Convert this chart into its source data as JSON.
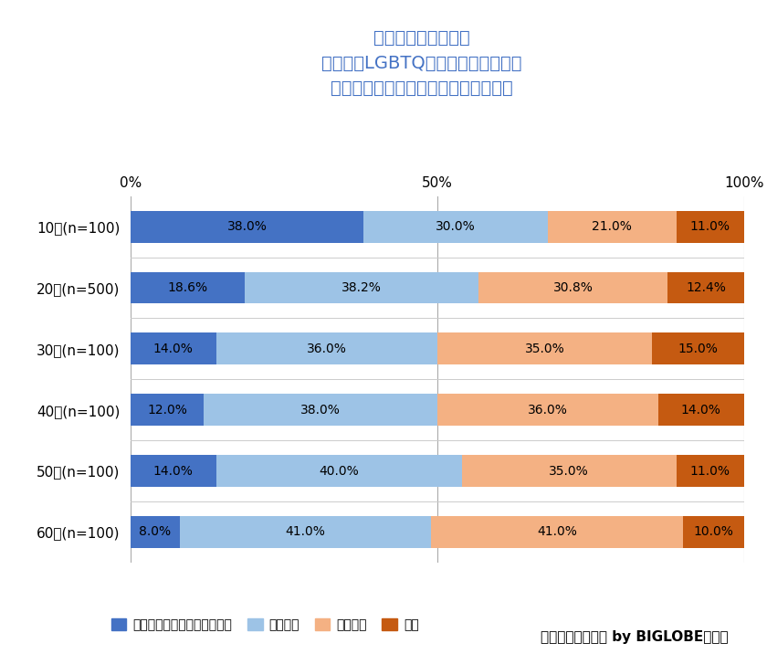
{
  "title_lines": [
    "求める社会の方向性",
    "［女性やLGBTQの方、障がい者など",
    "マイノリティが生きやすくなる社会］"
  ],
  "categories": [
    "10代(n=100)",
    "20代(n=500)",
    "30代(n=100)",
    "40代(n=100)",
    "50代(n=100)",
    "60代(n=100)"
  ],
  "series": {
    "近い": [
      38.0,
      18.6,
      14.0,
      12.0,
      14.0,
      8.0
    ],
    "やや近い": [
      30.0,
      38.2,
      36.0,
      38.0,
      40.0,
      41.0
    ],
    "やや遠い": [
      21.0,
      30.8,
      35.0,
      36.0,
      35.0,
      41.0
    ],
    "遠い": [
      11.0,
      12.4,
      15.0,
      14.0,
      11.0,
      10.0
    ]
  },
  "colors": {
    "近い": "#4472C4",
    "やや近い": "#9DC3E6",
    "やや遠い": "#F4B183",
    "遠い": "#C55A11"
  },
  "legend_labels": {
    "近い": "自身が求める方向性に：近い",
    "やや近い": "やや近い",
    "やや遠い": "やや遠い",
    "遠い": "遠い"
  },
  "xlim": [
    0,
    100
  ],
  "xticks": [
    0,
    50,
    100
  ],
  "xticklabels": [
    "0%",
    "50%",
    "100%"
  ],
  "footnote": "「あしたメディア by BIGLOBE」調べ",
  "background_color": "#FFFFFF",
  "title_color": "#4472C4",
  "bar_height": 0.52,
  "value_fontsize": 10,
  "label_fontsize": 11,
  "tick_fontsize": 11,
  "title_fontsize": 14
}
